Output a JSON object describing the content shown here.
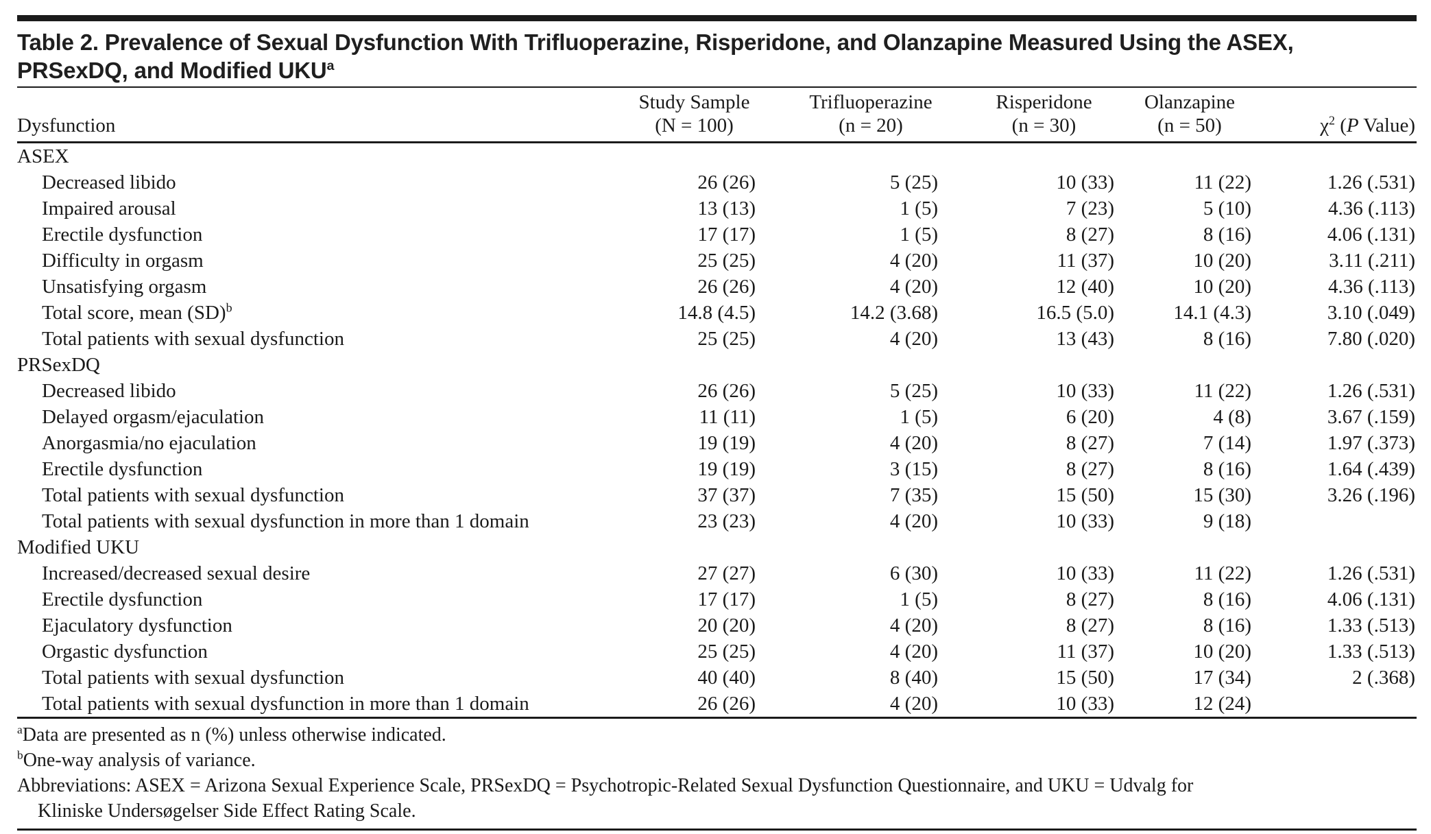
{
  "table": {
    "title_line1": "Table 2. Prevalence of Sexual Dysfunction With Trifluoperazine, Risperidone, and Olanzapine Measured Using the ASEX,",
    "title_line2": "PRSexDQ, and Modified UKU",
    "title_superscript": "a",
    "row_header": "Dysfunction",
    "columns": [
      {
        "line1": "Study Sample",
        "line2": "(N = 100)"
      },
      {
        "line1": "Trifluoperazine",
        "line2": "(n = 20)"
      },
      {
        "line1": "Risperidone",
        "line2": "(n = 30)"
      },
      {
        "line1": "Olanzapine",
        "line2": "(n = 50)"
      }
    ],
    "chi_header": {
      "chi": "χ",
      "sup": "2",
      "pre": " (",
      "p": "P",
      "post": " Value)"
    },
    "rows": [
      {
        "type": "section",
        "label": "ASEX"
      },
      {
        "type": "data",
        "label": "Decreased libido",
        "values": [
          "26 (26)",
          "5 (25)",
          "10 (33)",
          "11 (22)",
          "1.26 (.531)"
        ]
      },
      {
        "type": "data",
        "label": "Impaired arousal",
        "values": [
          "13 (13)",
          "1 (5)",
          "7 (23)",
          "5 (10)",
          "4.36 (.113)"
        ]
      },
      {
        "type": "data",
        "label": "Erectile dysfunction",
        "values": [
          "17 (17)",
          "1 (5)",
          "8 (27)",
          "8 (16)",
          "4.06 (.131)"
        ]
      },
      {
        "type": "data",
        "label": "Difficulty in orgasm",
        "values": [
          "25 (25)",
          "4 (20)",
          "11 (37)",
          "10 (20)",
          "3.11 (.211)"
        ]
      },
      {
        "type": "data",
        "label": "Unsatisfying orgasm",
        "values": [
          "26 (26)",
          "4 (20)",
          "12 (40)",
          "10 (20)",
          "4.36 (.113)"
        ]
      },
      {
        "type": "data",
        "label": "Total score, mean (SD)",
        "label_sup": "b",
        "values": [
          "14.8 (4.5)",
          "14.2 (3.68)",
          "16.5 (5.0)",
          "14.1 (4.3)",
          "3.10 (.049)"
        ]
      },
      {
        "type": "data",
        "label": "Total patients with sexual dysfunction",
        "values": [
          "25 (25)",
          "4 (20)",
          "13 (43)",
          "8 (16)",
          "7.80 (.020)"
        ]
      },
      {
        "type": "section",
        "label": "PRSexDQ"
      },
      {
        "type": "data",
        "label": "Decreased libido",
        "values": [
          "26 (26)",
          "5 (25)",
          "10 (33)",
          "11 (22)",
          "1.26 (.531)"
        ]
      },
      {
        "type": "data",
        "label": "Delayed orgasm/ejaculation",
        "values": [
          "11 (11)",
          "1 (5)",
          "6 (20)",
          "4 (8)",
          "3.67 (.159)"
        ]
      },
      {
        "type": "data",
        "label": "Anorgasmia/no ejaculation",
        "values": [
          "19 (19)",
          "4 (20)",
          "8 (27)",
          "7 (14)",
          "1.97 (.373)"
        ]
      },
      {
        "type": "data",
        "label": "Erectile dysfunction",
        "values": [
          "19 (19)",
          "3 (15)",
          "8 (27)",
          "8 (16)",
          "1.64 (.439)"
        ]
      },
      {
        "type": "data",
        "label": "Total patients with sexual dysfunction",
        "values": [
          "37 (37)",
          "7 (35)",
          "15 (50)",
          "15 (30)",
          "3.26 (.196)"
        ]
      },
      {
        "type": "data",
        "label": "Total patients with sexual dysfunction in more than 1 domain",
        "values": [
          "23 (23)",
          "4 (20)",
          "10 (33)",
          "9 (18)",
          ""
        ]
      },
      {
        "type": "section",
        "label": "Modified UKU"
      },
      {
        "type": "data",
        "label": "Increased/decreased sexual desire",
        "values": [
          "27 (27)",
          "6 (30)",
          "10 (33)",
          "11 (22)",
          "1.26 (.531)"
        ]
      },
      {
        "type": "data",
        "label": "Erectile dysfunction",
        "values": [
          "17 (17)",
          "1 (5)",
          "8 (27)",
          "8 (16)",
          "4.06 (.131)"
        ]
      },
      {
        "type": "data",
        "label": "Ejaculatory dysfunction",
        "values": [
          "20 (20)",
          "4 (20)",
          "8 (27)",
          "8 (16)",
          "1.33 (.513)"
        ]
      },
      {
        "type": "data",
        "label": "Orgastic dysfunction",
        "values": [
          "25 (25)",
          "4 (20)",
          "11 (37)",
          "10 (20)",
          "1.33 (.513)"
        ]
      },
      {
        "type": "data",
        "label": "Total patients with sexual dysfunction",
        "values": [
          "40 (40)",
          "8 (40)",
          "15 (50)",
          "17 (34)",
          "2 (.368)"
        ]
      },
      {
        "type": "data",
        "label": "Total patients with sexual dysfunction in more than 1 domain",
        "values": [
          "26 (26)",
          "4 (20)",
          "10 (33)",
          "12 (24)",
          ""
        ]
      }
    ]
  },
  "footnotes": [
    {
      "marker": "a",
      "lines": [
        "Data are presented as n (%) unless otherwise indicated."
      ]
    },
    {
      "marker": "b",
      "lines": [
        "One-way analysis of variance."
      ]
    },
    {
      "marker": "",
      "lines": [
        "Abbreviations: ASEX = Arizona Sexual Experience Scale, PRSexDQ = Psychotropic-Related Sexual Dysfunction Questionnaire, and UKU = Udvalg for",
        "Kliniske Undersøgelser Side Effect Rating Scale."
      ]
    }
  ]
}
